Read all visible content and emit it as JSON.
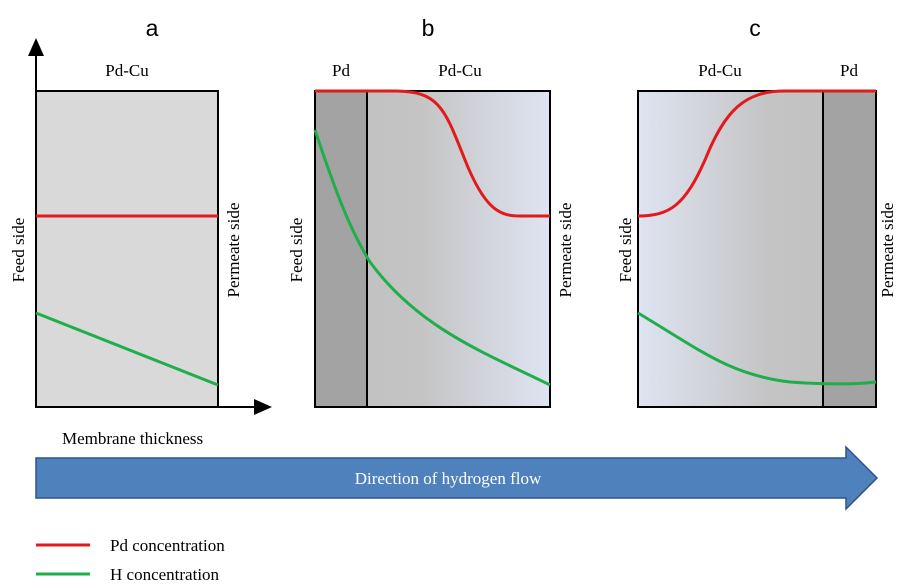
{
  "panels": [
    {
      "label": "a",
      "layers": [
        "Pd-Cu"
      ],
      "feed": "Feed side",
      "permeate": "Permeate side"
    },
    {
      "label": "b",
      "layers": [
        "Pd",
        "Pd-Cu"
      ],
      "feed": "Feed side",
      "permeate": "Permeate side"
    },
    {
      "label": "c",
      "layers": [
        "Pd-Cu",
        "Pd"
      ],
      "feed": "Feed side",
      "permeate": "Permeate side"
    }
  ],
  "axis_label": "Membrane thickness",
  "flow_arrow": "Direction of hydrogen flow",
  "legend": [
    {
      "name": "Pd concentration",
      "color": "#e31a1c"
    },
    {
      "name": "H concentration",
      "color": "#1fae4b"
    }
  ]
}
